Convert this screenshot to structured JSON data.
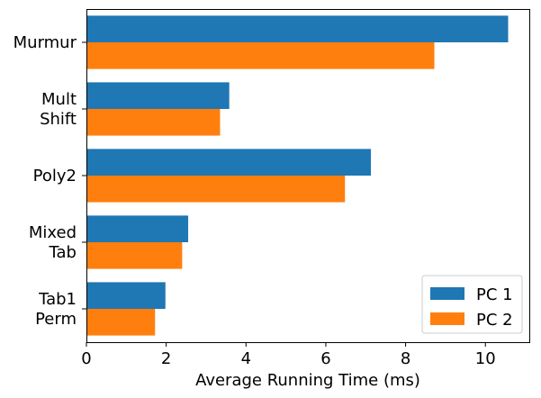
{
  "chart_data": {
    "type": "bar",
    "orientation": "horizontal",
    "title": "",
    "xlabel": "Average Running Time (ms)",
    "ylabel": "",
    "xlim": [
      0,
      11.1
    ],
    "xticks": [
      0,
      2,
      4,
      6,
      8,
      10
    ],
    "grid": false,
    "legend_position": "bottom-right",
    "categories": [
      [
        "Murmur"
      ],
      [
        "Mult",
        "Shift"
      ],
      [
        "Poly2"
      ],
      [
        "Mixed",
        "Tab"
      ],
      [
        "Tab1",
        "Perm"
      ]
    ],
    "series": [
      {
        "name": "PC 1",
        "color": "#1f77b4",
        "values": [
          10.57,
          3.58,
          7.13,
          2.55,
          1.98
        ]
      },
      {
        "name": "PC 2",
        "color": "#ff7f0e",
        "values": [
          8.72,
          3.35,
          6.48,
          2.4,
          1.72
        ]
      }
    ]
  }
}
